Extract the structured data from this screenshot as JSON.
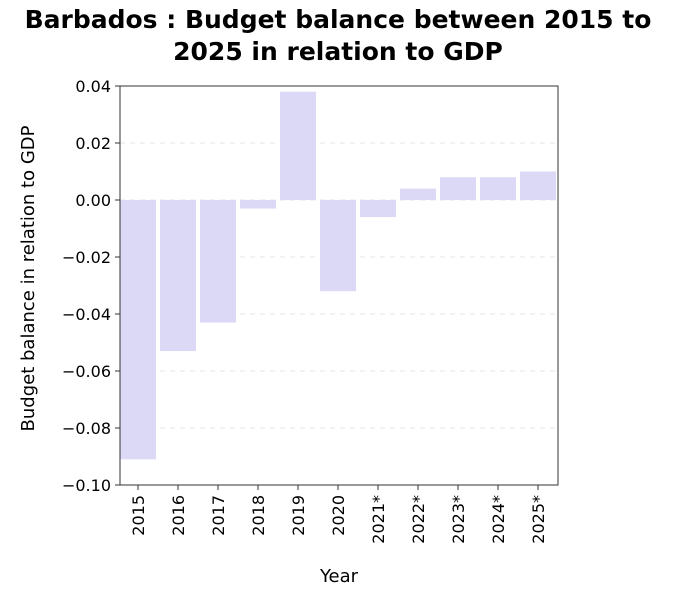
{
  "chart_data": {
    "type": "bar",
    "title_line1": "Barbados : Budget balance between 2015 to",
    "title_line2": "2025 in relation to GDP",
    "xlabel": "Year",
    "ylabel": "Budget balance in relation to GDP",
    "categories": [
      "2015",
      "2016",
      "2017",
      "2018",
      "2019",
      "2020",
      "2021*",
      "2022*",
      "2023*",
      "2024*",
      "2025*"
    ],
    "values": [
      -0.091,
      -0.053,
      -0.043,
      -0.003,
      0.038,
      -0.032,
      -0.006,
      0.004,
      0.008,
      0.008,
      0.01
    ],
    "ylim": [
      -0.1,
      0.04
    ],
    "yticks": [
      "0.04",
      "0.02",
      "0.00",
      "−0.02",
      "−0.04",
      "−0.06",
      "−0.08",
      "−0.10"
    ],
    "ytick_values": [
      0.04,
      0.02,
      0.0,
      -0.02,
      -0.04,
      -0.06,
      -0.08,
      -0.1
    ],
    "bar_color": "#dcd9f6",
    "grid": true,
    "legend": false
  }
}
